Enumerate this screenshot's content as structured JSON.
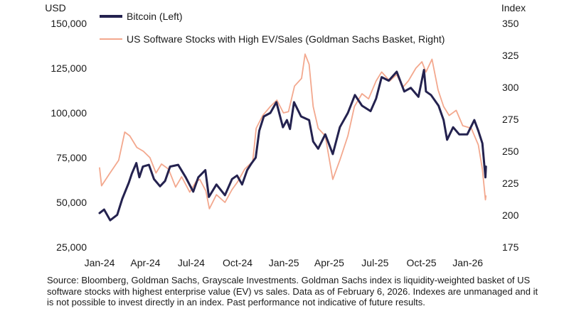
{
  "chart_data": {
    "type": "line",
    "title": "",
    "left_axis": {
      "unit_label": "USD",
      "ylim": [
        25000,
        150000
      ],
      "ticks": [
        25000,
        50000,
        75000,
        100000,
        125000,
        150000
      ],
      "tick_labels": [
        "25,000",
        "50,000",
        "75,000",
        "100,000",
        "125,000",
        "150,000"
      ]
    },
    "right_axis": {
      "unit_label": "Index",
      "ylim": [
        175,
        350
      ],
      "ticks": [
        175,
        200,
        225,
        250,
        275,
        300,
        325,
        350
      ],
      "tick_labels": [
        "175",
        "200",
        "225",
        "250",
        "275",
        "300",
        "325",
        "350"
      ]
    },
    "x_axis": {
      "range": [
        "2024-01-01",
        "2026-02-10"
      ],
      "ticks": [
        "2024-01-01",
        "2024-04-01",
        "2024-07-01",
        "2024-10-01",
        "2025-01-01",
        "2025-04-01",
        "2025-07-01",
        "2025-10-01",
        "2026-01-01"
      ],
      "tick_labels": [
        "Jan-24",
        "Apr-24",
        "Jul-24",
        "Oct-24",
        "Jan-25",
        "Apr-25",
        "Jul-25",
        "Oct-25",
        "Jan-26"
      ]
    },
    "grid": false,
    "legend_placement": "top-left",
    "series": [
      {
        "name": "Bitcoin (Left)",
        "axis": "left",
        "color": "#24224f",
        "points": [
          [
            "2024-01-01",
            44000
          ],
          [
            "2024-01-10",
            46000
          ],
          [
            "2024-01-22",
            40000
          ],
          [
            "2024-02-05",
            43000
          ],
          [
            "2024-02-15",
            52000
          ],
          [
            "2024-02-28",
            61000
          ],
          [
            "2024-03-05",
            66000
          ],
          [
            "2024-03-14",
            72000
          ],
          [
            "2024-03-20",
            64000
          ],
          [
            "2024-03-27",
            70000
          ],
          [
            "2024-04-08",
            71000
          ],
          [
            "2024-04-18",
            63000
          ],
          [
            "2024-04-30",
            59000
          ],
          [
            "2024-05-10",
            62000
          ],
          [
            "2024-05-20",
            70000
          ],
          [
            "2024-06-05",
            71000
          ],
          [
            "2024-06-20",
            64000
          ],
          [
            "2024-07-05",
            56000
          ],
          [
            "2024-07-15",
            64000
          ],
          [
            "2024-07-29",
            68000
          ],
          [
            "2024-08-05",
            53000
          ],
          [
            "2024-08-20",
            60000
          ],
          [
            "2024-09-06",
            54000
          ],
          [
            "2024-09-20",
            63000
          ],
          [
            "2024-09-30",
            65000
          ],
          [
            "2024-10-10",
            60000
          ],
          [
            "2024-10-20",
            68000
          ],
          [
            "2024-10-29",
            72000
          ],
          [
            "2024-11-06",
            75000
          ],
          [
            "2024-11-13",
            90000
          ],
          [
            "2024-11-22",
            98000
          ],
          [
            "2024-12-05",
            100000
          ],
          [
            "2024-12-17",
            106000
          ],
          [
            "2024-12-30",
            92000
          ],
          [
            "2025-01-07",
            96000
          ],
          [
            "2025-01-13",
            91000
          ],
          [
            "2025-01-21",
            106000
          ],
          [
            "2025-02-04",
            98000
          ],
          [
            "2025-02-20",
            96000
          ],
          [
            "2025-02-28",
            84000
          ],
          [
            "2025-03-10",
            80000
          ],
          [
            "2025-03-24",
            88000
          ],
          [
            "2025-04-08",
            77000
          ],
          [
            "2025-04-22",
            92000
          ],
          [
            "2025-05-08",
            100000
          ],
          [
            "2025-05-22",
            110000
          ],
          [
            "2025-06-05",
            104000
          ],
          [
            "2025-06-22",
            101000
          ],
          [
            "2025-07-03",
            108000
          ],
          [
            "2025-07-14",
            120000
          ],
          [
            "2025-07-28",
            118000
          ],
          [
            "2025-08-13",
            123000
          ],
          [
            "2025-08-28",
            112000
          ],
          [
            "2025-09-10",
            114000
          ],
          [
            "2025-09-25",
            109000
          ],
          [
            "2025-10-06",
            124000
          ],
          [
            "2025-10-10",
            112000
          ],
          [
            "2025-10-20",
            110000
          ],
          [
            "2025-11-04",
            104000
          ],
          [
            "2025-11-14",
            96000
          ],
          [
            "2025-11-21",
            85000
          ],
          [
            "2025-12-03",
            92000
          ],
          [
            "2025-12-15",
            88000
          ],
          [
            "2025-12-31",
            88000
          ],
          [
            "2026-01-14",
            96000
          ],
          [
            "2026-01-22",
            90000
          ],
          [
            "2026-01-30",
            83000
          ],
          [
            "2026-02-05",
            64000
          ],
          [
            "2026-02-06",
            70000
          ]
        ]
      },
      {
        "name": "US Software Stocks with High EV/Sales (Goldman Sachs Basket, Right)",
        "axis": "right",
        "color": "#f3a88e",
        "points": [
          [
            "2024-01-01",
            237
          ],
          [
            "2024-01-05",
            223
          ],
          [
            "2024-01-20",
            232
          ],
          [
            "2024-02-08",
            243
          ],
          [
            "2024-02-20",
            265
          ],
          [
            "2024-03-01",
            262
          ],
          [
            "2024-03-15",
            253
          ],
          [
            "2024-03-28",
            250
          ],
          [
            "2024-04-10",
            245
          ],
          [
            "2024-04-22",
            233
          ],
          [
            "2024-05-03",
            240
          ],
          [
            "2024-05-17",
            236
          ],
          [
            "2024-05-31",
            222
          ],
          [
            "2024-06-12",
            230
          ],
          [
            "2024-06-28",
            218
          ],
          [
            "2024-07-10",
            226
          ],
          [
            "2024-07-18",
            228
          ],
          [
            "2024-07-30",
            219
          ],
          [
            "2024-08-06",
            205
          ],
          [
            "2024-08-20",
            216
          ],
          [
            "2024-09-06",
            210
          ],
          [
            "2024-09-20",
            220
          ],
          [
            "2024-10-01",
            226
          ],
          [
            "2024-10-15",
            236
          ],
          [
            "2024-10-31",
            242
          ],
          [
            "2024-11-07",
            268
          ],
          [
            "2024-11-20",
            278
          ],
          [
            "2024-12-05",
            285
          ],
          [
            "2024-12-18",
            290
          ],
          [
            "2024-12-31",
            280
          ],
          [
            "2025-01-10",
            281
          ],
          [
            "2025-01-22",
            301
          ],
          [
            "2025-02-05",
            307
          ],
          [
            "2025-02-12",
            326
          ],
          [
            "2025-02-20",
            318
          ],
          [
            "2025-02-28",
            285
          ],
          [
            "2025-03-10",
            268
          ],
          [
            "2025-03-24",
            262
          ],
          [
            "2025-04-08",
            228
          ],
          [
            "2025-04-22",
            243
          ],
          [
            "2025-05-08",
            262
          ],
          [
            "2025-05-21",
            285
          ],
          [
            "2025-06-05",
            295
          ],
          [
            "2025-06-18",
            291
          ],
          [
            "2025-07-03",
            305
          ],
          [
            "2025-07-14",
            312
          ],
          [
            "2025-07-30",
            305
          ],
          [
            "2025-08-13",
            310
          ],
          [
            "2025-08-25",
            300
          ],
          [
            "2025-09-05",
            305
          ],
          [
            "2025-09-20",
            315
          ],
          [
            "2025-10-02",
            320
          ],
          [
            "2025-10-10",
            312
          ],
          [
            "2025-10-22",
            322
          ],
          [
            "2025-11-03",
            298
          ],
          [
            "2025-11-14",
            285
          ],
          [
            "2025-11-25",
            278
          ],
          [
            "2025-12-09",
            282
          ],
          [
            "2025-12-22",
            270
          ],
          [
            "2026-01-08",
            268
          ],
          [
            "2026-01-22",
            255
          ],
          [
            "2026-01-30",
            236
          ],
          [
            "2026-02-05",
            212
          ],
          [
            "2026-02-06",
            215
          ]
        ]
      }
    ]
  },
  "source_note": "Source: Bloomberg, Goldman Sachs, Grayscale Investments. Goldman Sachs index is liquidity-weighted basket of US software stocks with highest enterprise value (EV) vs sales. Data as of February 6, 2026. Indexes are unmanaged and it is not possible to invest directly in an index. Past performance not indicative of future results."
}
